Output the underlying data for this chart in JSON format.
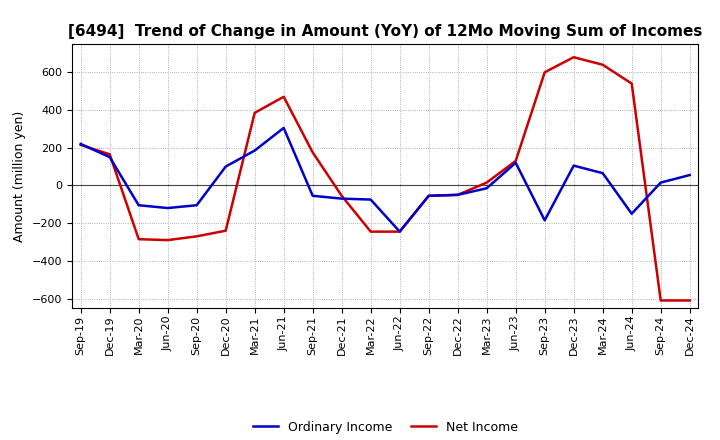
{
  "title": "[6494]  Trend of Change in Amount (YoY) of 12Mo Moving Sum of Incomes",
  "ylabel": "Amount (million yen)",
  "xlabels": [
    "Sep-19",
    "Dec-19",
    "Mar-20",
    "Jun-20",
    "Sep-20",
    "Dec-20",
    "Mar-21",
    "Jun-21",
    "Sep-21",
    "Dec-21",
    "Mar-22",
    "Jun-22",
    "Sep-22",
    "Dec-22",
    "Mar-23",
    "Jun-23",
    "Sep-23",
    "Dec-23",
    "Mar-24",
    "Jun-24",
    "Sep-24",
    "Dec-24"
  ],
  "ordinary_income": [
    220,
    150,
    -105,
    -120,
    -105,
    100,
    185,
    305,
    -55,
    -70,
    -75,
    -245,
    -55,
    -50,
    -15,
    120,
    -185,
    105,
    65,
    -150,
    15,
    55
  ],
  "net_income": [
    215,
    165,
    -285,
    -290,
    -270,
    -240,
    385,
    470,
    175,
    -55,
    -245,
    -245,
    -55,
    -50,
    15,
    130,
    600,
    680,
    640,
    540,
    -610,
    -610
  ],
  "ordinary_income_color": "#0000cc",
  "net_income_color": "#cc0000",
  "ylim": [
    -650,
    750
  ],
  "yticks": [
    -600,
    -400,
    -200,
    0,
    200,
    400,
    600
  ],
  "grid_color": "#999999",
  "legend_labels": [
    "Ordinary Income",
    "Net Income"
  ],
  "line_width": 1.8,
  "title_fontsize": 11,
  "tick_fontsize": 8,
  "ylabel_fontsize": 9
}
